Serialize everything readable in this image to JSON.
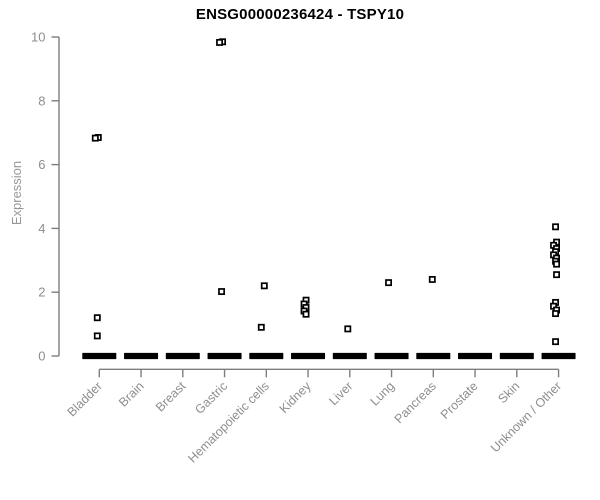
{
  "chart_data": {
    "type": "scatter",
    "subtype": "strip-plot",
    "title": "ENSG00000236424 - TSPY10",
    "xlabel": "",
    "ylabel": "Expression",
    "ylim": [
      0,
      10
    ],
    "yticks": [
      0,
      2,
      4,
      6,
      8,
      10
    ],
    "grid": false,
    "legend": "none",
    "marker": "open-square",
    "colors": {
      "point": "#000000",
      "zero_band": "#000000",
      "axis": "#7d7d7d",
      "tick_label": "#8e8e8e",
      "title": "#000000",
      "background": "#ffffff"
    },
    "categories": [
      "Bladder",
      "Brain",
      "Breast",
      "Gastric",
      "Hematopoietic cells",
      "Kidney",
      "Liver",
      "Lung",
      "Pancreas",
      "Prostate",
      "Skin",
      "Unknown / Other"
    ],
    "series": [
      {
        "category": "Bladder",
        "zero_band": true,
        "values": [
          6.85,
          6.83,
          1.2,
          0.63
        ],
        "dx": [
          -1,
          -4,
          -2,
          -2
        ]
      },
      {
        "category": "Brain",
        "zero_band": true,
        "values": [],
        "dx": []
      },
      {
        "category": "Breast",
        "zero_band": true,
        "values": [],
        "dx": []
      },
      {
        "category": "Gastric",
        "zero_band": true,
        "values": [
          9.85,
          9.83,
          2.02
        ],
        "dx": [
          -2,
          -5,
          -3
        ]
      },
      {
        "category": "Hematopoietic cells",
        "zero_band": true,
        "values": [
          2.2,
          0.9
        ],
        "dx": [
          -2,
          -5
        ]
      },
      {
        "category": "Kidney",
        "zero_band": true,
        "values": [
          1.75,
          1.63,
          1.52,
          1.41,
          1.31
        ],
        "dx": [
          -2,
          -4,
          -2,
          -4,
          -2
        ]
      },
      {
        "category": "Liver",
        "zero_band": true,
        "values": [
          0.85
        ],
        "dx": [
          -2
        ]
      },
      {
        "category": "Lung",
        "zero_band": true,
        "values": [
          2.3
        ],
        "dx": [
          -3
        ]
      },
      {
        "category": "Pancreas",
        "zero_band": true,
        "values": [
          2.4
        ],
        "dx": [
          -1
        ]
      },
      {
        "category": "Prostate",
        "zero_band": true,
        "values": [],
        "dx": []
      },
      {
        "category": "Skin",
        "zero_band": true,
        "values": [],
        "dx": []
      },
      {
        "category": "Unknown / Other",
        "zero_band": true,
        "values": [
          4.05,
          3.57,
          3.47,
          3.37,
          3.27,
          3.17,
          3.07,
          2.97,
          2.88,
          2.55,
          1.68,
          1.56,
          1.44,
          1.33,
          0.45
        ],
        "dx": [
          -3,
          -2,
          -5,
          -2,
          -3,
          -5,
          -2,
          -3,
          -2,
          -2,
          -3,
          -5,
          -2,
          -3,
          -3
        ]
      }
    ]
  }
}
